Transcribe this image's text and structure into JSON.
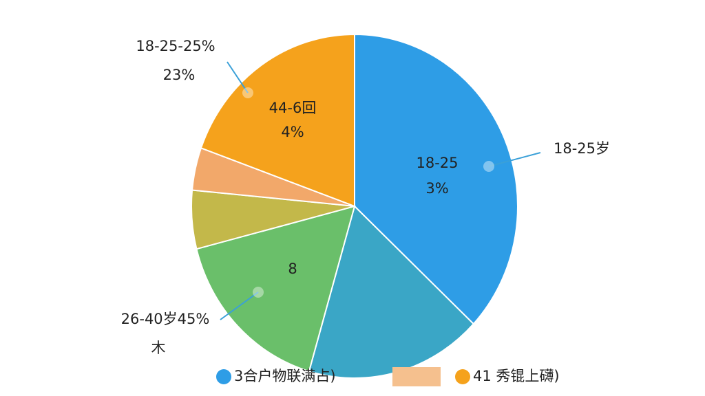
{
  "chart_data": {
    "type": "pie",
    "categories": [
      null,
      null,
      null,
      null,
      null,
      null
    ],
    "values": [
      37,
      17.5,
      16.5,
      5.5,
      4,
      19.5
    ],
    "colors": [
      "#2e9de6",
      "#3aa6c6",
      "#6abf6a",
      "#c3b84a",
      "#f2a86a",
      "#f5a21c"
    ],
    "annotations": [
      "18-25-25%",
      "23%",
      "44-6回",
      "4%",
      "18-25",
      "3%",
      "18-25岁",
      "8",
      "26-40岁45%",
      "木"
    ],
    "legend": [
      {
        "name": "3合户物联满占)",
        "color": "#2e9de6"
      },
      {
        "name": null,
        "color": "#f5c08e"
      },
      {
        "name": "41 秀锟上礴)",
        "color": "#f5a21c"
      }
    ]
  }
}
